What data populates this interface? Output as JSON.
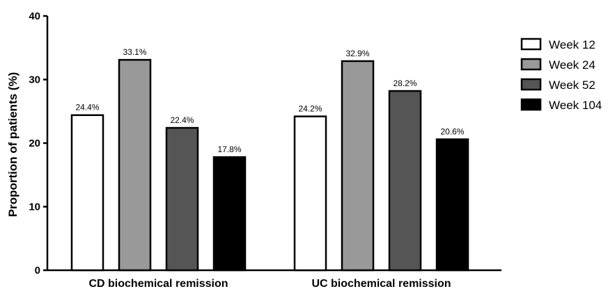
{
  "chart_data": {
    "type": "bar",
    "categories": [
      "CD biochemical remission",
      "UC biochemical remission"
    ],
    "series": [
      {
        "name": "Week 12",
        "color": "#ffffff",
        "values": [
          24.4,
          24.2
        ],
        "labels": [
          "24.4%",
          "24.2%"
        ]
      },
      {
        "name": "Week 24",
        "color": "#999999",
        "values": [
          33.1,
          32.9
        ],
        "labels": [
          "33.1%",
          "32.9%"
        ]
      },
      {
        "name": "Week 52",
        "color": "#555555",
        "values": [
          22.4,
          28.2
        ],
        "labels": [
          "22.4%",
          "28.2%"
        ]
      },
      {
        "name": "Week 104",
        "color": "#000000",
        "values": [
          17.8,
          20.6
        ],
        "labels": [
          "17.8%",
          "20.6%"
        ]
      }
    ],
    "ylabel": "Proportion of patients (%)",
    "xlabel": "",
    "ylim": [
      0,
      40
    ],
    "yticks": [
      0,
      10,
      20,
      30,
      40
    ],
    "legend_position": "top-right",
    "grid": false
  }
}
